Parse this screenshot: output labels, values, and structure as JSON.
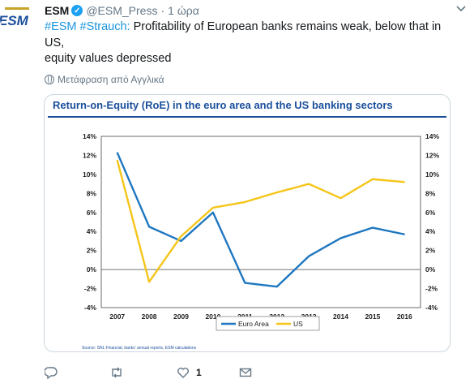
{
  "tweet": {
    "name": "ESM",
    "handle": "@ESM_Press",
    "separator": "·",
    "time": "1 ώρα",
    "text_hashtags": "#ESM #Strauch:",
    "text_line1": " Profitability of European banks remains weak, below that in",
    "text_line2": "US,",
    "text_line3": "equity values depressed",
    "translate_label": "Μετάφραση από Αγγλικά",
    "avatar_logo": "ESM",
    "like_count": "1"
  },
  "icons": {
    "verified": "verified-badge-icon",
    "caret": "chevron-down-icon",
    "globe": "globe-icon",
    "reply": "reply-icon",
    "retweet": "retweet-icon",
    "like": "heart-icon",
    "message": "envelope-icon"
  },
  "colors": {
    "accent": "#1b95e0",
    "verified": "#1da1f2",
    "chart_title": "#1b4f9c",
    "euro_area": "#1f77c0",
    "us": "#f5c518"
  },
  "chart_data": {
    "type": "line",
    "title": "Return-on-Equity (RoE) in the euro area and the US banking sectors",
    "categories": [
      "2007",
      "2008",
      "2009",
      "2010",
      "2011",
      "2012",
      "2013",
      "2014",
      "2015",
      "2016"
    ],
    "series": [
      {
        "name": "Euro Area",
        "values": [
          12.3,
          4.5,
          3.0,
          6.0,
          -1.4,
          -1.8,
          1.4,
          3.3,
          4.4,
          3.7
        ]
      },
      {
        "name": "US",
        "values": [
          11.5,
          -1.3,
          3.5,
          6.5,
          7.1,
          8.1,
          9.0,
          7.5,
          9.5,
          9.2
        ]
      }
    ],
    "ylim": [
      -4,
      14
    ],
    "yticks": [
      "14%",
      "12%",
      "10%",
      "8%",
      "6%",
      "4%",
      "2%",
      "0%",
      "-2%",
      "-4%"
    ],
    "grid": false,
    "legend": "bottom-center",
    "source": "Source: SNL Financial, banks' annual reports, ESM calculations"
  }
}
